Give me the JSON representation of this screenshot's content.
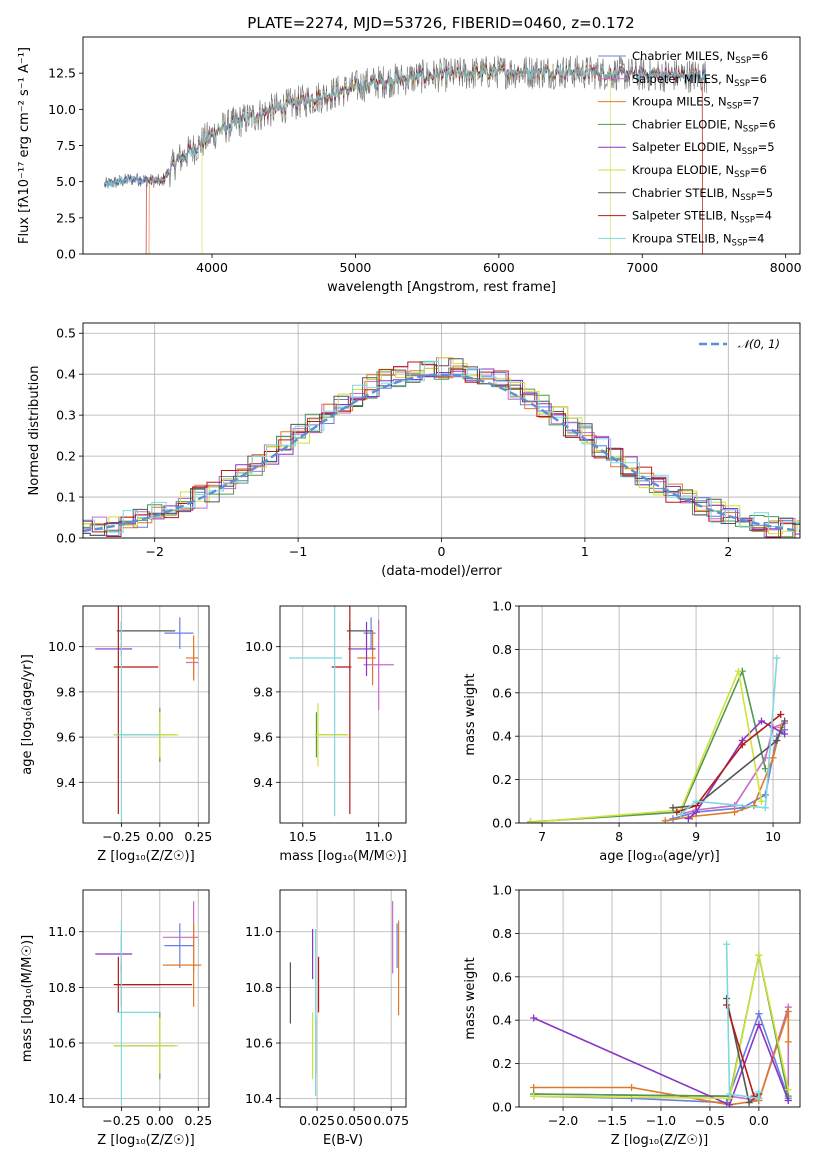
{
  "title": "PLATE=2274, MJD=53726, FIBERID=0460, z=0.172",
  "models": [
    {
      "name": "Chabrier MILES",
      "nssp": 6,
      "color": "#6a7fe0"
    },
    {
      "name": "Salpeter MILES",
      "nssp": 6,
      "color": "#c96bc9"
    },
    {
      "name": "Kroupa MILES",
      "nssp": 7,
      "color": "#e07a26"
    },
    {
      "name": "Chabrier ELODIE",
      "nssp": 6,
      "color": "#4f9a4f"
    },
    {
      "name": "Salpeter ELODIE",
      "nssp": 5,
      "color": "#8a35c4"
    },
    {
      "name": "Kroupa ELODIE",
      "nssp": 6,
      "color": "#cfe23a"
    },
    {
      "name": "Chabrier STELIB",
      "nssp": 5,
      "color": "#555555"
    },
    {
      "name": "Salpeter STELIB",
      "nssp": 4,
      "color": "#b81818"
    },
    {
      "name": "Kroupa STELIB",
      "nssp": 4,
      "color": "#7fd8e0"
    }
  ],
  "legend_nssp_label": "N",
  "legend_nssp_sub": "SSP",
  "chart_data": [
    {
      "id": "spectrum",
      "type": "line",
      "xlabel": "wavelength [Angstrom, rest frame]",
      "ylabel": "Flux [fλ10⁻¹⁷ erg cm⁻² s⁻¹ A⁻¹]",
      "xlim": [
        3100,
        8100
      ],
      "ylim": [
        0,
        15
      ],
      "xticks": [
        4000,
        5000,
        6000,
        7000,
        8000
      ],
      "yticks": [
        0.0,
        2.5,
        5.0,
        7.5,
        10.0,
        12.5
      ],
      "legend": "right",
      "data_range": [
        3250,
        7450
      ],
      "continuum": [
        [
          3250,
          4.8
        ],
        [
          3450,
          5.2
        ],
        [
          3650,
          5.0
        ],
        [
          3750,
          6.4
        ],
        [
          3900,
          7.5
        ],
        [
          4050,
          8.6
        ],
        [
          4200,
          9.2
        ],
        [
          4500,
          10.2
        ],
        [
          4800,
          11.0
        ],
        [
          5100,
          11.8
        ],
        [
          5500,
          12.3
        ],
        [
          6000,
          12.6
        ],
        [
          6500,
          12.6
        ],
        [
          7000,
          12.4
        ],
        [
          7450,
          12.3
        ]
      ]
    },
    {
      "id": "residuals",
      "type": "histogram",
      "xlabel": "(data-model)/error",
      "ylabel": "Normed distribution",
      "xlim": [
        -2.5,
        2.5
      ],
      "ylim": [
        0,
        0.525
      ],
      "xticks": [
        -2,
        -1,
        0,
        1,
        2
      ],
      "yticks": [
        0.0,
        0.1,
        0.2,
        0.3,
        0.4,
        0.5
      ],
      "grid": true,
      "reference": {
        "name": "𝒩(0, 1)",
        "mean": 0,
        "sigma": 1,
        "color": "#5b8fd6"
      },
      "legend": "top-right"
    },
    {
      "id": "age-vs-Z",
      "type": "errorbar",
      "xlabel": "Z [log₁₀(Z/Z☉)]",
      "ylabel": "age  [log₁₀(age/yr)]",
      "xlim": [
        -0.5,
        0.32
      ],
      "ylim": [
        9.22,
        10.18
      ],
      "xticks": [
        -0.25,
        0.0,
        0.25
      ],
      "yticks": [
        9.4,
        9.6,
        9.8,
        10.0
      ],
      "grid": true,
      "points": [
        {
          "x": 0.13,
          "xerr": [
            0.1,
            0.09
          ],
          "y": 10.06,
          "yerr": 0.07,
          "model": 0
        },
        {
          "x": 0.22,
          "xerr": [
            0.05,
            0.03
          ],
          "y": 9.93,
          "yerr": 0.07,
          "model": 1
        },
        {
          "x": 0.22,
          "xerr": [
            0.05,
            0.03
          ],
          "y": 9.95,
          "yerr": 0.1,
          "model": 2
        },
        {
          "x": 0.0,
          "xerr": [
            0.3,
            0.1
          ],
          "y": 9.61,
          "yerr": 0.12,
          "model": 3
        },
        {
          "x": -0.25,
          "xerr": [
            0.17,
            0.07
          ],
          "y": 9.99,
          "yerr": 0.03,
          "model": 4
        },
        {
          "x": 0.0,
          "xerr": [
            0.3,
            0.12
          ],
          "y": 9.61,
          "yerr": 0.1,
          "model": 5
        },
        {
          "x": -0.25,
          "xerr": [
            0.03,
            0.35
          ],
          "y": 10.07,
          "yerr": 0.04,
          "model": 6
        },
        {
          "x": -0.27,
          "xerr": [
            0.03,
            0.26
          ],
          "y": 9.91,
          "yerr": 0.65,
          "model": 7
        },
        {
          "x": -0.25,
          "xerr": [
            0.03,
            0.25
          ],
          "y": 9.61,
          "yerr": 0.5,
          "model": 8
        }
      ]
    },
    {
      "id": "age-vs-mass",
      "type": "errorbar",
      "xlabel": "mass [log₁₀(M/M☉)]",
      "ylabel": "",
      "xlim": [
        10.35,
        11.18
      ],
      "ylim": [
        9.22,
        10.18
      ],
      "xticks": [
        10.5,
        11.0
      ],
      "yticks": [
        9.4,
        9.6,
        9.8,
        10.0
      ],
      "grid": true,
      "points": [
        {
          "x": 10.95,
          "xerr": [
            0.05,
            0.03
          ],
          "y": 10.06,
          "yerr": 0.07,
          "model": 0
        },
        {
          "x": 11.0,
          "xerr": [
            0.1,
            0.1
          ],
          "y": 9.92,
          "yerr": 0.2,
          "model": 1
        },
        {
          "x": 10.96,
          "xerr": [
            0.1,
            0.02
          ],
          "y": 9.95,
          "yerr": 0.12,
          "model": 2
        },
        {
          "x": 10.59,
          "xerr": [
            0.01,
            0.2
          ],
          "y": 9.61,
          "yerr": 0.1,
          "model": 3
        },
        {
          "x": 10.92,
          "xerr": [
            0.12,
            0.06
          ],
          "y": 9.99,
          "yerr": 0.12,
          "model": 4
        },
        {
          "x": 10.6,
          "xerr": [
            0.02,
            0.2
          ],
          "y": 9.61,
          "yerr": 0.14,
          "model": 5
        },
        {
          "x": 10.81,
          "xerr": [
            0.02,
            0.15
          ],
          "y": 10.07,
          "yerr": 0.04,
          "model": 6
        },
        {
          "x": 10.81,
          "xerr": [
            0.12,
            0.01
          ],
          "y": 9.91,
          "yerr": 0.65,
          "model": 7
        },
        {
          "x": 10.71,
          "xerr": [
            0.3,
            0.05
          ],
          "y": 9.95,
          "yerr": 0.7,
          "model": 8
        }
      ]
    },
    {
      "id": "massweight-vs-age",
      "type": "line",
      "xlabel": "age  [log₁₀(age/yr)]",
      "ylabel": "mass weight",
      "xlim": [
        6.7,
        10.35
      ],
      "ylim": [
        0,
        1.0
      ],
      "xticks": [
        7,
        8,
        9,
        10
      ],
      "yticks": [
        0.0,
        0.2,
        0.4,
        0.6,
        0.8,
        1.0
      ],
      "grid": true,
      "series": [
        {
          "model": 0,
          "x": [
            8.7,
            9.0,
            9.6,
            9.9,
            10.05,
            10.15
          ],
          "y": [
            0.02,
            0.05,
            0.07,
            0.13,
            0.4,
            0.43
          ]
        },
        {
          "model": 1,
          "x": [
            8.8,
            9.0,
            9.5,
            9.9,
            10.0,
            10.15
          ],
          "y": [
            0.04,
            0.06,
            0.08,
            0.3,
            0.44,
            0.46
          ]
        },
        {
          "model": 2,
          "x": [
            8.6,
            8.95,
            9.5,
            9.75,
            10.0,
            10.1
          ],
          "y": [
            0.01,
            0.03,
            0.05,
            0.08,
            0.3,
            0.44
          ]
        },
        {
          "model": 3,
          "x": [
            6.85,
            8.8,
            9.6,
            9.9
          ],
          "y": [
            0.005,
            0.05,
            0.7,
            0.25
          ]
        },
        {
          "model": 4,
          "x": [
            8.9,
            9.0,
            9.6,
            9.85,
            10.15
          ],
          "y": [
            0.02,
            0.05,
            0.38,
            0.47,
            0.41
          ]
        },
        {
          "model": 5,
          "x": [
            6.85,
            8.8,
            9.55,
            9.85
          ],
          "y": [
            0.003,
            0.06,
            0.7,
            0.1
          ]
        },
        {
          "model": 6,
          "x": [
            8.7,
            9.0,
            10.05,
            10.15
          ],
          "y": [
            0.07,
            0.08,
            0.38,
            0.47
          ]
        },
        {
          "model": 7,
          "x": [
            8.75,
            9.0,
            9.6,
            10.1
          ],
          "y": [
            0.05,
            0.08,
            0.36,
            0.5
          ]
        },
        {
          "model": 8,
          "x": [
            8.8,
            9.0,
            9.9,
            10.05
          ],
          "y": [
            0.04,
            0.1,
            0.07,
            0.76
          ]
        }
      ]
    },
    {
      "id": "mass-vs-Z",
      "type": "errorbar",
      "xlabel": "Z [log₁₀(Z/Z☉)]",
      "ylabel": "mass [log₁₀(M/M☉)]",
      "xlim": [
        -0.5,
        0.32
      ],
      "ylim": [
        10.37,
        11.15
      ],
      "xticks": [
        -0.25,
        0.0,
        0.25
      ],
      "yticks": [
        10.4,
        10.6,
        10.8,
        11.0
      ],
      "grid": true,
      "points": [
        {
          "x": 0.13,
          "xerr": [
            0.1,
            0.09
          ],
          "y": 10.95,
          "yerr": 0.08,
          "model": 0
        },
        {
          "x": 0.22,
          "xerr": [
            0.2,
            0.03
          ],
          "y": 10.98,
          "yerr": 0.13,
          "model": 1
        },
        {
          "x": 0.22,
          "xerr": [
            0.2,
            0.05
          ],
          "y": 10.88,
          "yerr": 0.15,
          "model": 2
        },
        {
          "x": 0.0,
          "xerr": [
            0.3,
            0.1
          ],
          "y": 10.59,
          "yerr": 0.12,
          "model": 3
        },
        {
          "x": -0.25,
          "xerr": [
            0.17,
            0.07
          ],
          "y": 10.92,
          "yerr": 0.07,
          "model": 4
        },
        {
          "x": 0.0,
          "xerr": [
            0.3,
            0.12
          ],
          "y": 10.59,
          "yerr": 0.1,
          "model": 5
        },
        {
          "x": -0.25,
          "xerr": [
            0.03,
            0.25
          ],
          "y": 10.81,
          "yerr": 0.08,
          "model": 6
        },
        {
          "x": -0.27,
          "xerr": [
            0.03,
            0.48
          ],
          "y": 10.81,
          "yerr": 0.1,
          "model": 7
        },
        {
          "x": -0.25,
          "xerr": [
            0.03,
            0.25
          ],
          "y": 10.71,
          "yerr": 0.33,
          "model": 8
        }
      ]
    },
    {
      "id": "mass-vs-ebv",
      "type": "errorbar",
      "xlabel": "E(B-V)",
      "ylabel": "",
      "xlim": [
        0.0,
        0.085
      ],
      "ylim": [
        10.37,
        11.15
      ],
      "xticks": [
        0.025,
        0.05,
        0.075
      ],
      "xticklabels": [
        "0.025",
        "0.050",
        "0.075"
      ],
      "yticks": [
        10.4,
        10.6,
        10.8,
        11.0
      ],
      "grid": true,
      "points": [
        {
          "x": 0.079,
          "y": 10.95,
          "yerr": 0.08,
          "model": 0
        },
        {
          "x": 0.076,
          "y": 10.98,
          "yerr": 0.13,
          "model": 1
        },
        {
          "x": 0.08,
          "y": 10.87,
          "yerr": 0.17,
          "model": 2
        },
        {
          "x": 0.024,
          "y": 10.59,
          "yerr": 0.1,
          "model": 3
        },
        {
          "x": 0.022,
          "y": 10.92,
          "yerr": 0.09,
          "model": 4
        },
        {
          "x": 0.022,
          "y": 10.59,
          "yerr": 0.12,
          "model": 5
        },
        {
          "x": 0.007,
          "y": 10.78,
          "yerr": 0.11,
          "model": 6
        },
        {
          "x": 0.026,
          "y": 10.81,
          "yerr": 0.1,
          "model": 7
        },
        {
          "x": 0.024,
          "y": 10.71,
          "yerr": 0.3,
          "model": 8
        }
      ]
    },
    {
      "id": "massweight-vs-Z",
      "type": "line",
      "xlabel": "Z [log₁₀(Z/Z☉)]",
      "ylabel": "mass weight",
      "xlim": [
        -2.45,
        0.42
      ],
      "ylim": [
        0,
        1.0
      ],
      "xticks": [
        -2.0,
        -1.5,
        -1.0,
        -0.5,
        0.0
      ],
      "yticks": [
        0.0,
        0.2,
        0.4,
        0.6,
        0.8,
        1.0
      ],
      "grid": true,
      "series": [
        {
          "model": 0,
          "x": [
            -2.3,
            -1.3,
            -0.33,
            0.0,
            0.3
          ],
          "y": [
            0.05,
            0.04,
            0.02,
            0.43,
            0.04
          ]
        },
        {
          "model": 1,
          "x": [
            -2.3,
            -0.3,
            0.0,
            0.3,
            0.3
          ],
          "y": [
            0.06,
            0.05,
            0.03,
            0.46,
            0.03
          ]
        },
        {
          "model": 2,
          "x": [
            -2.3,
            -1.3,
            -0.3,
            0.0,
            0.3,
            0.3
          ],
          "y": [
            0.09,
            0.09,
            0.01,
            0.03,
            0.44,
            0.3
          ]
        },
        {
          "model": 3,
          "x": [
            -2.3,
            -0.3,
            0.0,
            0.3
          ],
          "y": [
            0.06,
            0.05,
            0.7,
            0.05
          ]
        },
        {
          "model": 4,
          "x": [
            -2.3,
            -0.3,
            0.0,
            0.3
          ],
          "y": [
            0.41,
            0.01,
            0.38,
            0.03
          ]
        },
        {
          "model": 5,
          "x": [
            -2.3,
            -0.3,
            0.0,
            0.3
          ],
          "y": [
            0.05,
            0.04,
            0.7,
            0.08
          ]
        },
        {
          "model": 6,
          "x": [
            -0.33,
            -0.1,
            0.0
          ],
          "y": [
            0.5,
            0.02,
            0.06
          ]
        },
        {
          "model": 7,
          "x": [
            -0.33,
            -0.05,
            0.0
          ],
          "y": [
            0.47,
            0.05,
            0.04
          ]
        },
        {
          "model": 8,
          "x": [
            -0.33,
            -0.3,
            0.0,
            0.0
          ],
          "y": [
            0.75,
            0.06,
            0.04,
            0.07
          ]
        }
      ]
    }
  ]
}
